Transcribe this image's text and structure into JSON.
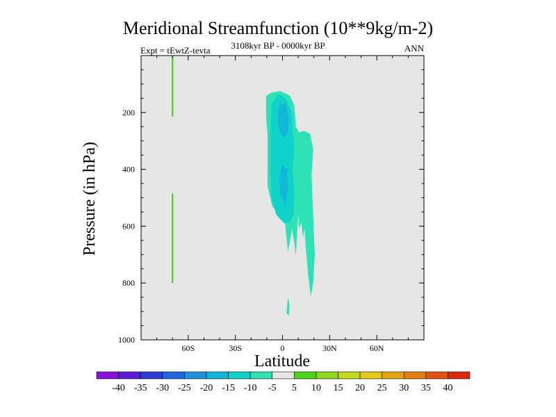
{
  "chart_data": {
    "type": "heatmap",
    "title": "Meridional Streamfunction (10**9kg/m-2)",
    "subtitle_left": "Expt = tEwtZ-tevta",
    "subtitle_center": "3108kyr BP - 0000kyr BP",
    "subtitle_right": "ANN",
    "xlabel": "Latitude",
    "ylabel": "Pressure (in hPa)",
    "xlim": [
      -90,
      90
    ],
    "ylim": [
      1000,
      0
    ],
    "x_ticks": [
      {
        "value": -60,
        "label": "60S"
      },
      {
        "value": -30,
        "label": "30S"
      },
      {
        "value": 0,
        "label": "0"
      },
      {
        "value": 30,
        "label": "30N"
      },
      {
        "value": 60,
        "label": "60N"
      }
    ],
    "y_ticks": [
      {
        "value": 200,
        "label": "200"
      },
      {
        "value": 400,
        "label": "400"
      },
      {
        "value": 600,
        "label": "600"
      },
      {
        "value": 800,
        "label": "800"
      },
      {
        "value": 1000,
        "label": "1000"
      }
    ],
    "colorbar": {
      "levels": [
        "-40",
        "-35",
        "-30",
        "-25",
        "-20",
        "-15",
        "-10",
        "-5",
        "5",
        "10",
        "15",
        "20",
        "25",
        "30",
        "35",
        "40"
      ],
      "colors": [
        "#8a12d8",
        "#5a1cd6",
        "#2f3dd8",
        "#1f67dc",
        "#1d93dc",
        "#12b7d8",
        "#0fd2c8",
        "#2de3b5",
        "#e6e6e6",
        "#4cd41c",
        "#8fd81a",
        "#c2d81a",
        "#e2c915",
        "#e2a512",
        "#e27f10",
        "#e0560e",
        "#de280c"
      ]
    },
    "contours": [
      {
        "level": "-5",
        "color": "#2de3b5",
        "points": [
          [
            -10.5,
            142
          ],
          [
            -7,
            130
          ],
          [
            -1.5,
            125
          ],
          [
            4.5,
            140
          ],
          [
            7.5,
            175
          ],
          [
            8.5,
            250
          ],
          [
            10.5,
            270
          ],
          [
            14,
            265
          ],
          [
            17.5,
            275
          ],
          [
            19.5,
            330
          ],
          [
            18.5,
            420
          ],
          [
            19.5,
            560
          ],
          [
            20.5,
            700
          ],
          [
            19.5,
            800
          ],
          [
            18,
            848
          ],
          [
            16.5,
            780
          ],
          [
            15,
            690
          ],
          [
            14,
            610
          ],
          [
            13,
            640
          ],
          [
            12,
            585
          ],
          [
            10.5,
            610
          ],
          [
            10,
            555
          ],
          [
            8.5,
            705
          ],
          [
            7.5,
            660
          ],
          [
            6,
            610
          ],
          [
            3.5,
            690
          ],
          [
            1.5,
            585
          ],
          [
            -2,
            560
          ],
          [
            -6.5,
            530
          ],
          [
            -9.5,
            460
          ],
          [
            -9.5,
            370
          ],
          [
            -9.5,
            280
          ],
          [
            -10.5,
            215
          ]
        ]
      },
      {
        "level": "-5",
        "color": "#2de3b5",
        "points": [
          [
            3.5,
            850
          ],
          [
            4.5,
            880
          ],
          [
            4,
            915
          ],
          [
            2.5,
            905
          ],
          [
            3,
            875
          ]
        ]
      },
      {
        "level": "-10",
        "color": "#0fd2c8",
        "points": [
          [
            -7,
            170
          ],
          [
            -3,
            135
          ],
          [
            2,
            150
          ],
          [
            5.5,
            195
          ],
          [
            6.5,
            260
          ],
          [
            7.5,
            320
          ],
          [
            6.5,
            400
          ],
          [
            7.5,
            480
          ],
          [
            7,
            555
          ],
          [
            5,
            585
          ],
          [
            1,
            590
          ],
          [
            -4,
            560
          ],
          [
            -7,
            500
          ],
          [
            -7.5,
            420
          ],
          [
            -7.5,
            340
          ],
          [
            -7.5,
            250
          ]
        ]
      },
      {
        "level": "-15",
        "color": "#12b7d8",
        "points": [
          [
            -3,
            220
          ],
          [
            -2,
            170
          ],
          [
            2,
            170
          ],
          [
            4,
            215
          ],
          [
            3.5,
            270
          ],
          [
            1,
            290
          ],
          [
            -2,
            265
          ]
        ]
      },
      {
        "level": "-15",
        "color": "#12b7d8",
        "points": [
          [
            -2,
            420
          ],
          [
            0,
            385
          ],
          [
            3,
            400
          ],
          [
            3.5,
            480
          ],
          [
            1.5,
            525
          ],
          [
            -1.5,
            485
          ]
        ]
      },
      {
        "level": "5",
        "color": "#4cd41c",
        "points": [
          [
            -70.5,
            5
          ],
          [
            -69.5,
            5
          ],
          [
            -69.5,
            215
          ],
          [
            -70.5,
            215
          ]
        ]
      },
      {
        "level": "5",
        "color": "#4cd41c",
        "points": [
          [
            -70.5,
            485
          ],
          [
            -69.5,
            485
          ],
          [
            -69.5,
            800
          ],
          [
            -70.5,
            800
          ]
        ]
      }
    ]
  }
}
